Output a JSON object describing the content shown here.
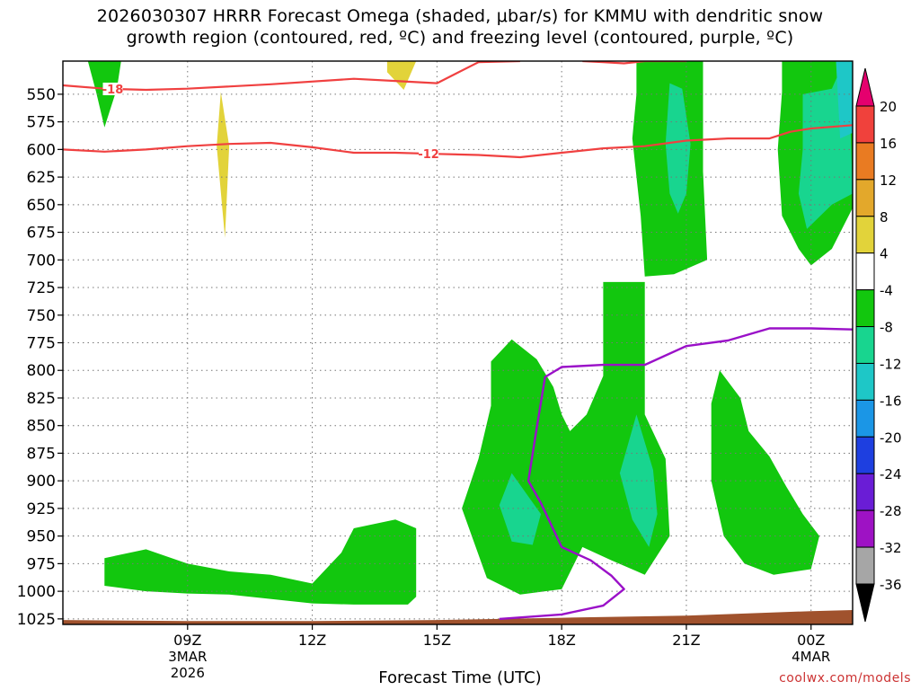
{
  "title": {
    "line1": "2026030307 HRRR Forecast Omega (shaded, μbar/s) for KMMU with dendritic snow",
    "line2": "growth region (contoured, red, ºC) and freezing level (contoured, purple, ºC)"
  },
  "credit": "coolwx.com/models",
  "chart_data": {
    "type": "heatmap",
    "xlabel": "Forecast Time (UTC)",
    "ylabel": "",
    "xlim": [
      "2026-03-03T06:00Z",
      "2026-03-04T01:00Z"
    ],
    "ylim": [
      1030,
      520
    ],
    "y_scale": "linear-inverted",
    "grid": true,
    "y_ticks": [
      "550",
      "575",
      "600",
      "625",
      "650",
      "675",
      "700",
      "725",
      "750",
      "775",
      "800",
      "825",
      "850",
      "875",
      "900",
      "925",
      "950",
      "975",
      "1000",
      "1025"
    ],
    "x_ticks": [
      {
        "time": "2026-03-03T09:00Z",
        "label": "09Z",
        "sub1": "3MAR",
        "sub2": "2026"
      },
      {
        "time": "2026-03-03T12:00Z",
        "label": "12Z",
        "sub1": "",
        "sub2": ""
      },
      {
        "time": "2026-03-03T15:00Z",
        "label": "15Z",
        "sub1": "",
        "sub2": ""
      },
      {
        "time": "2026-03-03T18:00Z",
        "label": "18Z",
        "sub1": "",
        "sub2": ""
      },
      {
        "time": "2026-03-03T21:00Z",
        "label": "21Z",
        "sub1": "",
        "sub2": ""
      },
      {
        "time": "2026-03-04T00:00Z",
        "label": "00Z",
        "sub1": "4MAR",
        "sub2": ""
      }
    ],
    "colorbar": {
      "labels": [
        "20",
        "16",
        "12",
        "8",
        "4",
        "-4",
        "-8",
        "-12",
        "-16",
        "-20",
        "-24",
        "-28",
        "-32",
        "-36"
      ],
      "colors": [
        "#e5006e",
        "#f0413c",
        "#e97b22",
        "#e3a82b",
        "#e2d33a",
        "#ffffff",
        "#12c70e",
        "#18d58f",
        "#1ec7c7",
        "#1b96e6",
        "#1e3fe0",
        "#6a1dd6",
        "#9e12c4",
        "#a6a6a6",
        "#000000"
      ]
    },
    "series": [
      {
        "label": "-18",
        "color": "#f04040",
        "points": [
          [
            "2026-03-03T06:00Z",
            542
          ],
          [
            "2026-03-03T07:00Z",
            545
          ],
          [
            "2026-03-03T08:00Z",
            546
          ],
          [
            "2026-03-03T09:00Z",
            545
          ],
          [
            "2026-03-03T11:00Z",
            541
          ],
          [
            "2026-03-03T13:00Z",
            536
          ],
          [
            "2026-03-03T14:00Z",
            538
          ],
          [
            "2026-03-03T15:00Z",
            540
          ],
          [
            "2026-03-03T16:00Z",
            521
          ],
          [
            "2026-03-03T17:00Z",
            520
          ]
        ],
        "label_at": "2026-03-03T07:12Z"
      },
      {
        "label": "-18",
        "color": "#f04040",
        "points": [
          [
            "2026-03-03T18:30Z",
            520
          ],
          [
            "2026-03-03T19:00Z",
            521
          ],
          [
            "2026-03-03T19:30Z",
            522
          ],
          [
            "2026-03-03T20:00Z",
            520
          ],
          [
            "2026-03-03T21:00Z",
            520
          ]
        ],
        "label_at": ""
      },
      {
        "label": "-12",
        "color": "#f04040",
        "points": [
          [
            "2026-03-03T06:00Z",
            600
          ],
          [
            "2026-03-03T07:00Z",
            602
          ],
          [
            "2026-03-03T08:00Z",
            600
          ],
          [
            "2026-03-03T09:00Z",
            597
          ],
          [
            "2026-03-03T10:00Z",
            595
          ],
          [
            "2026-03-03T11:00Z",
            594
          ],
          [
            "2026-03-03T12:00Z",
            598
          ],
          [
            "2026-03-03T13:00Z",
            603
          ],
          [
            "2026-03-03T14:00Z",
            603
          ],
          [
            "2026-03-03T15:00Z",
            604
          ],
          [
            "2026-03-03T16:00Z",
            605
          ],
          [
            "2026-03-03T17:00Z",
            607
          ],
          [
            "2026-03-03T18:00Z",
            603
          ],
          [
            "2026-03-03T19:00Z",
            599
          ],
          [
            "2026-03-03T20:00Z",
            597
          ],
          [
            "2026-03-03T21:00Z",
            592
          ],
          [
            "2026-03-03T22:00Z",
            590
          ],
          [
            "2026-03-03T23:00Z",
            590
          ],
          [
            "2026-03-03T23:30Z",
            584
          ],
          [
            "2026-03-04T00:00Z",
            581
          ],
          [
            "2026-03-04T01:00Z",
            578
          ]
        ],
        "label_at": "2026-03-03T14:48Z"
      },
      {
        "label": "freezing level",
        "color": "#9a10c8",
        "points": [
          [
            "2026-03-03T16:30Z",
            1025
          ],
          [
            "2026-03-03T18:00Z",
            1021
          ],
          [
            "2026-03-03T19:00Z",
            1013
          ],
          [
            "2026-03-03T19:30Z",
            998
          ],
          [
            "2026-03-03T19:12Z",
            986
          ],
          [
            "2026-03-03T18:42Z",
            972
          ],
          [
            "2026-03-03T18:00Z",
            960
          ],
          [
            "2026-03-03T17:30Z",
            920
          ],
          [
            "2026-03-03T17:12Z",
            900
          ],
          [
            "2026-03-03T17:24Z",
            852
          ],
          [
            "2026-03-03T17:36Z",
            806
          ],
          [
            "2026-03-03T18:00Z",
            797
          ],
          [
            "2026-03-03T19:00Z",
            795
          ],
          [
            "2026-03-03T20:00Z",
            795
          ],
          [
            "2026-03-03T21:00Z",
            778
          ],
          [
            "2026-03-03T22:00Z",
            773
          ],
          [
            "2026-03-03T23:00Z",
            762
          ],
          [
            "2026-03-04T00:00Z",
            762
          ],
          [
            "2026-03-04T01:00Z",
            763
          ]
        ]
      }
    ],
    "regions": [
      {
        "value": "-4 to -8",
        "color": "#12c70e",
        "points": [
          [
            "2026-03-03T06:36Z",
            520
          ],
          [
            "2026-03-03T07:24Z",
            520
          ],
          [
            "2026-03-03T07:18Z",
            545
          ],
          [
            "2026-03-03T07:00Z",
            580
          ],
          [
            "2026-03-03T06:48Z",
            548
          ]
        ]
      },
      {
        "value": "4 to 8",
        "color": "#e2d33a",
        "points": [
          [
            "2026-03-03T09:48Z",
            548
          ],
          [
            "2026-03-03T10:00Z",
            597
          ],
          [
            "2026-03-03T09:54Z",
            680
          ],
          [
            "2026-03-03T09:42Z",
            597
          ]
        ]
      },
      {
        "value": "4 to 8",
        "color": "#e2d33a",
        "points": [
          [
            "2026-03-03T13:48Z",
            520
          ],
          [
            "2026-03-03T14:30Z",
            520
          ],
          [
            "2026-03-03T14:12Z",
            546
          ],
          [
            "2026-03-03T13:48Z",
            530
          ]
        ]
      },
      {
        "value": "-4 to -8",
        "color": "#12c70e",
        "points": [
          [
            "2026-03-03T07:00Z",
            970
          ],
          [
            "2026-03-03T08:00Z",
            962
          ],
          [
            "2026-03-03T09:00Z",
            975
          ],
          [
            "2026-03-03T10:00Z",
            982
          ],
          [
            "2026-03-03T11:00Z",
            985
          ],
          [
            "2026-03-03T12:00Z",
            993
          ],
          [
            "2026-03-03T12:42Z",
            965
          ],
          [
            "2026-03-03T13:00Z",
            943
          ],
          [
            "2026-03-03T14:00Z",
            935
          ],
          [
            "2026-03-03T14:30Z",
            943
          ],
          [
            "2026-03-03T14:30Z",
            1005
          ],
          [
            "2026-03-03T14:18Z",
            1012
          ],
          [
            "2026-03-03T13:00Z",
            1012
          ],
          [
            "2026-03-03T12:00Z",
            1011
          ],
          [
            "2026-03-03T10:00Z",
            1003
          ],
          [
            "2026-03-03T09:00Z",
            1002
          ],
          [
            "2026-03-03T08:00Z",
            1000
          ],
          [
            "2026-03-03T07:00Z",
            995
          ]
        ]
      },
      {
        "value": "-4 to -8",
        "color": "#12c70e",
        "points": [
          [
            "2026-03-03T19:00Z",
            720
          ],
          [
            "2026-03-03T20:00Z",
            720
          ],
          [
            "2026-03-03T20:00Z",
            840
          ],
          [
            "2026-03-03T20:30Z",
            880
          ],
          [
            "2026-03-03T20:36Z",
            950
          ],
          [
            "2026-03-03T20:00Z",
            985
          ],
          [
            "2026-03-03T19:12Z",
            972
          ],
          [
            "2026-03-03T18:30Z",
            960
          ],
          [
            "2026-03-03T18:00Z",
            998
          ],
          [
            "2026-03-03T17:00Z",
            1003
          ],
          [
            "2026-03-03T16:12Z",
            988
          ],
          [
            "2026-03-03T15:36Z",
            925
          ],
          [
            "2026-03-03T16:00Z",
            880
          ],
          [
            "2026-03-03T16:18Z",
            832
          ],
          [
            "2026-03-03T16:18Z",
            792
          ],
          [
            "2026-03-03T16:48Z",
            772
          ],
          [
            "2026-03-03T17:24Z",
            790
          ],
          [
            "2026-03-03T17:48Z",
            815
          ],
          [
            "2026-03-03T18:00Z",
            840
          ],
          [
            "2026-03-03T18:12Z",
            855
          ],
          [
            "2026-03-03T18:36Z",
            840
          ],
          [
            "2026-03-03T19:00Z",
            805
          ]
        ]
      },
      {
        "value": "-8 to -12",
        "color": "#18d58f",
        "points": [
          [
            "2026-03-03T16:48Z",
            893
          ],
          [
            "2026-03-03T17:30Z",
            930
          ],
          [
            "2026-03-03T17:18Z",
            958
          ],
          [
            "2026-03-03T16:48Z",
            955
          ],
          [
            "2026-03-03T16:30Z",
            922
          ]
        ]
      },
      {
        "value": "-8 to -12",
        "color": "#18d58f",
        "points": [
          [
            "2026-03-03T19:48Z",
            840
          ],
          [
            "2026-03-03T20:12Z",
            890
          ],
          [
            "2026-03-03T20:18Z",
            930
          ],
          [
            "2026-03-03T20:06Z",
            960
          ],
          [
            "2026-03-03T19:42Z",
            935
          ],
          [
            "2026-03-03T19:24Z",
            893
          ]
        ]
      },
      {
        "value": "-4 to -8",
        "color": "#12c70e",
        "points": [
          [
            "2026-03-03T19:48Z",
            520
          ],
          [
            "2026-03-03T20:48Z",
            520
          ],
          [
            "2026-03-03T21:24Z",
            520
          ],
          [
            "2026-03-03T21:24Z",
            620
          ],
          [
            "2026-03-03T21:30Z",
            700
          ],
          [
            "2026-03-03T20:42Z",
            713
          ],
          [
            "2026-03-03T20:00Z",
            715
          ],
          [
            "2026-03-03T19:54Z",
            660
          ],
          [
            "2026-03-03T19:42Z",
            590
          ],
          [
            "2026-03-03T19:48Z",
            550
          ]
        ]
      },
      {
        "value": "-8 to -12",
        "color": "#18d58f",
        "points": [
          [
            "2026-03-03T20:36Z",
            540
          ],
          [
            "2026-03-03T20:54Z",
            545
          ],
          [
            "2026-03-03T21:06Z",
            595
          ],
          [
            "2026-03-03T21:00Z",
            640
          ],
          [
            "2026-03-03T20:48Z",
            658
          ],
          [
            "2026-03-03T20:36Z",
            640
          ],
          [
            "2026-03-03T20:30Z",
            595
          ]
        ]
      },
      {
        "value": "-4 to -8",
        "color": "#12c70e",
        "points": [
          [
            "2026-03-03T23:18Z",
            520
          ],
          [
            "2026-03-04T00:00Z",
            520
          ],
          [
            "2026-03-04T01:00Z",
            520
          ],
          [
            "2026-03-04T01:00Z",
            653
          ],
          [
            "2026-03-04T00:30Z",
            690
          ],
          [
            "2026-03-04T00:00Z",
            705
          ],
          [
            "2026-03-03T23:42Z",
            690
          ],
          [
            "2026-03-03T23:18Z",
            660
          ],
          [
            "2026-03-03T23:12Z",
            600
          ],
          [
            "2026-03-03T23:18Z",
            548
          ]
        ]
      },
      {
        "value": "-8 to -12",
        "color": "#18d58f",
        "points": [
          [
            "2026-03-03T23:48Z",
            550
          ],
          [
            "2026-03-04T00:30Z",
            545
          ],
          [
            "2026-03-04T00:48Z",
            520
          ],
          [
            "2026-03-04T00:54Z",
            520
          ],
          [
            "2026-03-04T01:00Z",
            640
          ],
          [
            "2026-03-04T00:30Z",
            650
          ],
          [
            "2026-03-03T23:54Z",
            672
          ],
          [
            "2026-03-03T23:42Z",
            640
          ],
          [
            "2026-03-03T23:48Z",
            600
          ]
        ]
      },
      {
        "value": "-12 to -16",
        "color": "#1ec7c7",
        "points": [
          [
            "2026-03-04T00:36Z",
            520
          ],
          [
            "2026-03-04T01:00Z",
            520
          ],
          [
            "2026-03-04T01:00Z",
            585
          ],
          [
            "2026-03-04T00:42Z",
            590
          ]
        ]
      },
      {
        "value": "-4 to -8",
        "color": "#12c70e",
        "points": [
          [
            "2026-03-03T21:48Z",
            800
          ],
          [
            "2026-03-03T22:18Z",
            825
          ],
          [
            "2026-03-03T22:30Z",
            855
          ],
          [
            "2026-03-03T23:00Z",
            878
          ],
          [
            "2026-03-03T23:24Z",
            905
          ],
          [
            "2026-03-03T23:48Z",
            930
          ],
          [
            "2026-03-04T00:12Z",
            950
          ],
          [
            "2026-03-04T00:00Z",
            980
          ],
          [
            "2026-03-03T23:06Z",
            985
          ],
          [
            "2026-03-03T22:24Z",
            975
          ],
          [
            "2026-03-03T21:54Z",
            950
          ],
          [
            "2026-03-03T21:36Z",
            900
          ],
          [
            "2026-03-03T21:36Z",
            830
          ]
        ]
      }
    ],
    "terrain": {
      "color": "#a0522d",
      "points": [
        [
          "2026-03-03T06:00Z",
          1026
        ],
        [
          "2026-03-03T09:00Z",
          1027
        ],
        [
          "2026-03-03T12:00Z",
          1027
        ],
        [
          "2026-03-03T15:00Z",
          1026
        ],
        [
          "2026-03-03T18:00Z",
          1024
        ],
        [
          "2026-03-03T21:00Z",
          1022
        ],
        [
          "2026-03-04T00:00Z",
          1018
        ],
        [
          "2026-03-04T01:00Z",
          1017
        ]
      ]
    }
  }
}
